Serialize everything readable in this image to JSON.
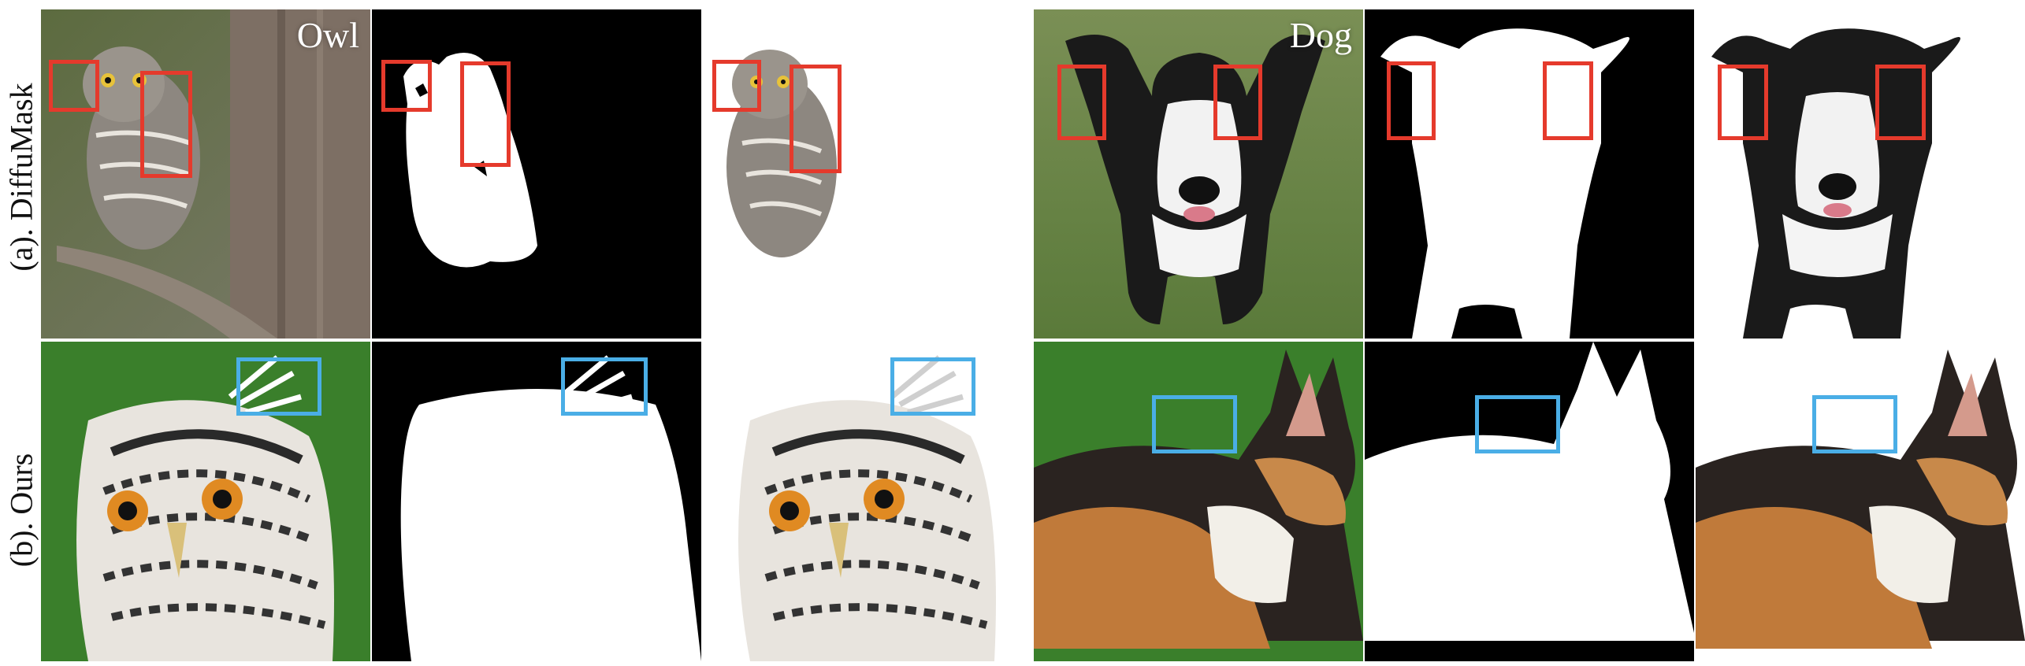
{
  "rows": [
    {
      "label": "(a). DiffuMask",
      "box_color": "#e53a2c"
    },
    {
      "label": "(b). Ours",
      "box_color": "#4aaee6"
    }
  ],
  "subjects": [
    "Owl",
    "Dog"
  ]
}
